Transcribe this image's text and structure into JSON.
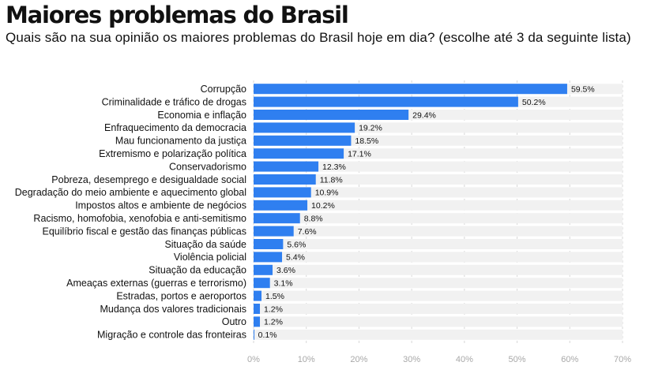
{
  "chart_data": {
    "type": "bar",
    "orientation": "horizontal",
    "title": "Maiores problemas do Brasil",
    "subtitle": "Quais são na sua opinião os maiores problemas do Brasil hoje em dia? (escolhe até 3 da seguinte lista)",
    "categories": [
      "Corrupção",
      "Criminalidade e tráfico de drogas",
      "Economia e inflação",
      "Enfraquecimento da democracia",
      "Mau funcionamento da justiça",
      "Extremismo e polarização política",
      "Conservadorismo",
      "Pobreza, desemprego e desigualdade social",
      "Degradação do meio ambiente e aquecimento global",
      "Impostos altos e ambiente de negócios",
      "Racismo, homofobia, xenofobia e anti-semitismo",
      "Equilíbrio fiscal e gestão das finanças públicas",
      "Situação da saúde",
      "Violência policial",
      "Situação da educação",
      "Ameaças externas (guerras e terrorismo)",
      "Estradas, portos e aeroportos",
      "Mudança dos valores tradicionais",
      "Outro",
      "Migração e controle das fronteiras"
    ],
    "values": [
      59.5,
      50.2,
      29.4,
      19.2,
      18.5,
      17.1,
      12.3,
      11.8,
      10.9,
      10.2,
      8.8,
      7.6,
      5.6,
      5.4,
      3.6,
      3.1,
      1.5,
      1.2,
      1.2,
      0.1
    ],
    "value_labels": [
      "59.5%",
      "50.2%",
      "29.4%",
      "19.2%",
      "18.5%",
      "17.1%",
      "12.3%",
      "11.8%",
      "10.9%",
      "10.2%",
      "8.8%",
      "7.6%",
      "5.6%",
      "5.4%",
      "3.6%",
      "3.1%",
      "1.5%",
      "1.2%",
      "1.2%",
      "0.1%"
    ],
    "xlim": [
      0,
      70
    ],
    "ticks": [
      0,
      10,
      20,
      30,
      40,
      50,
      60,
      70
    ],
    "tick_labels": [
      "0%",
      "10%",
      "20%",
      "30%",
      "40%",
      "50%",
      "60%",
      "70%"
    ],
    "bar_color": "#2f7ff0",
    "track_color": "#f1f1f1",
    "grid_color": "#d7d7d7",
    "grid": true,
    "legend": "none"
  }
}
